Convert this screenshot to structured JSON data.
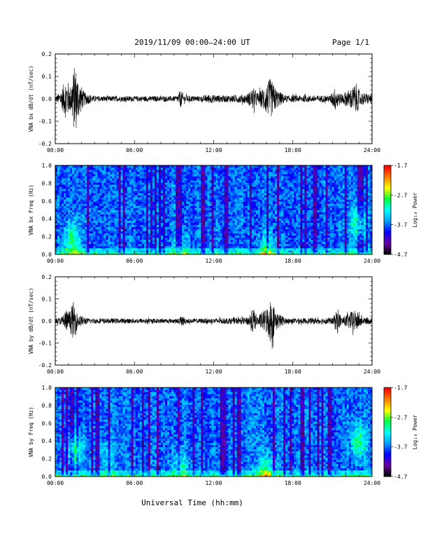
{
  "header": {
    "title": "2019/11/09  00:00–24:00 UT",
    "page": "Page 1/1"
  },
  "footer": {
    "xlabel": "Universal Time (hh:mm)"
  },
  "colorbar": {
    "label": "Log₁₀ Power",
    "ticks": [
      "-1.7",
      "-2.7",
      "-3.7",
      "-4.7"
    ],
    "range": [
      -4.7,
      -1.7
    ],
    "colors": [
      "#000000",
      "#6a00a8",
      "#0000ff",
      "#00a0ff",
      "#00ffff",
      "#00ff40",
      "#ffff00",
      "#ff8000",
      "#ff0000"
    ]
  },
  "chart_data": [
    {
      "type": "line",
      "ylabel": "VNA bx dB/dt (nT/sec)",
      "xlim": [
        0,
        24
      ],
      "ylim": [
        -0.2,
        0.2
      ],
      "x_ticks": [
        "00:00",
        "06:00",
        "12:00",
        "18:00",
        "24:00"
      ],
      "y_ticks": [
        "0.2",
        "0.1",
        "0.0",
        "-0.1",
        "-0.2"
      ],
      "y_tick_values": [
        0.2,
        0.1,
        0.0,
        -0.1,
        -0.2
      ],
      "series": [
        {
          "color": "#000000",
          "envelope": [
            {
              "t": 0.0,
              "amp": 0.012
            },
            {
              "t": 0.4,
              "amp": 0.03
            },
            {
              "t": 0.6,
              "amp": 0.06
            },
            {
              "t": 0.85,
              "amp": 0.1
            },
            {
              "t": 1.1,
              "amp": 0.05
            },
            {
              "t": 1.5,
              "amp": 0.16
            },
            {
              "t": 1.8,
              "amp": 0.08
            },
            {
              "t": 2.2,
              "amp": 0.03
            },
            {
              "t": 3.0,
              "amp": 0.012
            },
            {
              "t": 9.2,
              "amp": 0.012
            },
            {
              "t": 9.5,
              "amp": 0.04
            },
            {
              "t": 9.8,
              "amp": 0.015
            },
            {
              "t": 11.0,
              "amp": 0.012
            },
            {
              "t": 11.6,
              "amp": 0.02
            },
            {
              "t": 12.8,
              "amp": 0.015
            },
            {
              "t": 14.5,
              "amp": 0.02
            },
            {
              "t": 15.0,
              "amp": 0.05
            },
            {
              "t": 15.4,
              "amp": 0.025
            },
            {
              "t": 16.0,
              "amp": 0.07
            },
            {
              "t": 16.3,
              "amp": 0.09
            },
            {
              "t": 16.8,
              "amp": 0.04
            },
            {
              "t": 17.5,
              "amp": 0.015
            },
            {
              "t": 20.8,
              "amp": 0.015
            },
            {
              "t": 21.3,
              "amp": 0.06
            },
            {
              "t": 21.6,
              "amp": 0.02
            },
            {
              "t": 22.5,
              "amp": 0.05
            },
            {
              "t": 22.8,
              "amp": 0.07
            },
            {
              "t": 23.1,
              "amp": 0.03
            },
            {
              "t": 24.0,
              "amp": 0.02
            }
          ]
        }
      ]
    },
    {
      "type": "heatmap",
      "ylabel": "VNA bx Freq (Hz)",
      "xlim": [
        0,
        24
      ],
      "ylim": [
        0.0,
        1.0
      ],
      "x_ticks": [
        "00:00",
        "06:00",
        "12:00",
        "18:00",
        "24:00"
      ],
      "y_ticks": [
        "1.0",
        "0.8",
        "0.6",
        "0.4",
        "0.2",
        "0.0"
      ],
      "y_tick_values": [
        1.0,
        0.8,
        0.6,
        0.4,
        0.2,
        0.0
      ],
      "value_range": [
        -4.7,
        -1.7
      ],
      "hotspots": [
        {
          "t": 1.3,
          "f": 0.15,
          "strength": 0.6
        },
        {
          "t": 16.0,
          "f": 0.03,
          "strength": 0.5
        },
        {
          "t": 23.0,
          "f": 0.35,
          "strength": 0.6
        },
        {
          "t": 9.5,
          "f": 0.04,
          "strength": 0.35
        }
      ]
    },
    {
      "type": "line",
      "ylabel": "VNA by dB/dt (nT/sec)",
      "xlim": [
        0,
        24
      ],
      "ylim": [
        -0.2,
        0.2
      ],
      "x_ticks": [
        "00:00",
        "06:00",
        "12:00",
        "18:00",
        "24:00"
      ],
      "y_ticks": [
        "0.2",
        "0.1",
        "0.0",
        "-0.1",
        "-0.2"
      ],
      "y_tick_values": [
        0.2,
        0.1,
        0.0,
        -0.1,
        -0.2
      ],
      "series": [
        {
          "color": "#000000",
          "envelope": [
            {
              "t": 0.0,
              "amp": 0.01
            },
            {
              "t": 0.5,
              "amp": 0.02
            },
            {
              "t": 0.8,
              "amp": 0.06
            },
            {
              "t": 1.0,
              "amp": 0.03
            },
            {
              "t": 1.4,
              "amp": 0.09
            },
            {
              "t": 1.7,
              "amp": 0.03
            },
            {
              "t": 2.5,
              "amp": 0.012
            },
            {
              "t": 9.3,
              "amp": 0.01
            },
            {
              "t": 9.6,
              "amp": 0.025
            },
            {
              "t": 10.0,
              "amp": 0.01
            },
            {
              "t": 14.5,
              "amp": 0.015
            },
            {
              "t": 15.0,
              "amp": 0.06
            },
            {
              "t": 15.3,
              "amp": 0.02
            },
            {
              "t": 16.0,
              "amp": 0.06
            },
            {
              "t": 16.3,
              "amp": 0.1
            },
            {
              "t": 16.8,
              "amp": 0.04
            },
            {
              "t": 17.5,
              "amp": 0.012
            },
            {
              "t": 21.0,
              "amp": 0.015
            },
            {
              "t": 21.4,
              "amp": 0.06
            },
            {
              "t": 21.7,
              "amp": 0.015
            },
            {
              "t": 22.6,
              "amp": 0.05
            },
            {
              "t": 22.9,
              "amp": 0.04
            },
            {
              "t": 23.3,
              "amp": 0.015
            },
            {
              "t": 24.0,
              "amp": 0.015
            }
          ]
        }
      ]
    },
    {
      "type": "heatmap",
      "ylabel": "VNA by Freq (Hz)",
      "xlim": [
        0,
        24
      ],
      "ylim": [
        0.0,
        1.0
      ],
      "x_ticks": [
        "00:00",
        "06:00",
        "12:00",
        "18:00",
        "24:00"
      ],
      "y_ticks": [
        "1.0",
        "0.8",
        "0.6",
        "0.4",
        "0.2",
        "0.0"
      ],
      "y_tick_values": [
        1.0,
        0.8,
        0.6,
        0.4,
        0.2,
        0.0
      ],
      "value_range": [
        -4.7,
        -1.7
      ],
      "hotspots": [
        {
          "t": 1.5,
          "f": 0.3,
          "strength": 0.6
        },
        {
          "t": 16.0,
          "f": 0.03,
          "strength": 0.6
        },
        {
          "t": 23.0,
          "f": 0.4,
          "strength": 0.6
        },
        {
          "t": 9.5,
          "f": 0.1,
          "strength": 0.4
        },
        {
          "t": 4.0,
          "f": 0.2,
          "strength": 0.3
        }
      ]
    }
  ]
}
